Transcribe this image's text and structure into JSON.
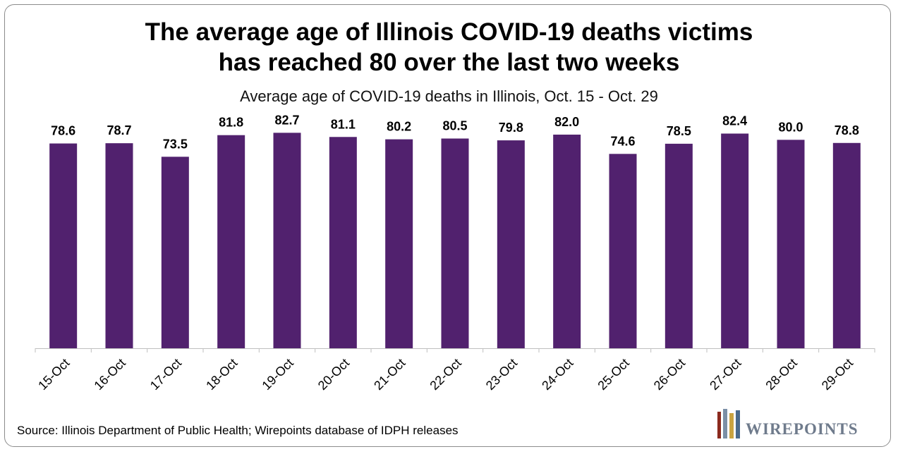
{
  "chart_data": {
    "type": "bar",
    "title_line1": "The average age of Illinois COVID-19 deaths victims",
    "title_line2": "has reached 80 over the last two weeks",
    "subtitle": "Average age of COVID-19 deaths in Illinois, Oct. 15 - Oct. 29",
    "categories": [
      "15-Oct",
      "16-Oct",
      "17-Oct",
      "18-Oct",
      "19-Oct",
      "20-Oct",
      "21-Oct",
      "22-Oct",
      "23-Oct",
      "24-Oct",
      "25-Oct",
      "26-Oct",
      "27-Oct",
      "28-Oct",
      "29-Oct"
    ],
    "values": [
      78.6,
      78.7,
      73.5,
      81.8,
      82.7,
      81.1,
      80.2,
      80.5,
      79.8,
      82.0,
      74.6,
      78.5,
      82.4,
      80.0,
      78.8
    ],
    "value_labels": [
      "78.6",
      "78.7",
      "73.5",
      "81.8",
      "82.7",
      "81.1",
      "80.2",
      "80.5",
      "79.8",
      "82.0",
      "74.6",
      "78.5",
      "82.4",
      "80.0",
      "78.8"
    ],
    "ylim": [
      0,
      92
    ],
    "xlabel": "",
    "ylabel": "",
    "bar_color": "#51216e",
    "grid": false,
    "legend": "none"
  },
  "source": "Source: Illinois Department of Public Health; Wirepoints database of IDPH releases",
  "logo": {
    "text": "WIREPOINTS",
    "colors": [
      "#8b2a1e",
      "#7b8fa6",
      "#c9a341",
      "#4a6a8c"
    ]
  }
}
